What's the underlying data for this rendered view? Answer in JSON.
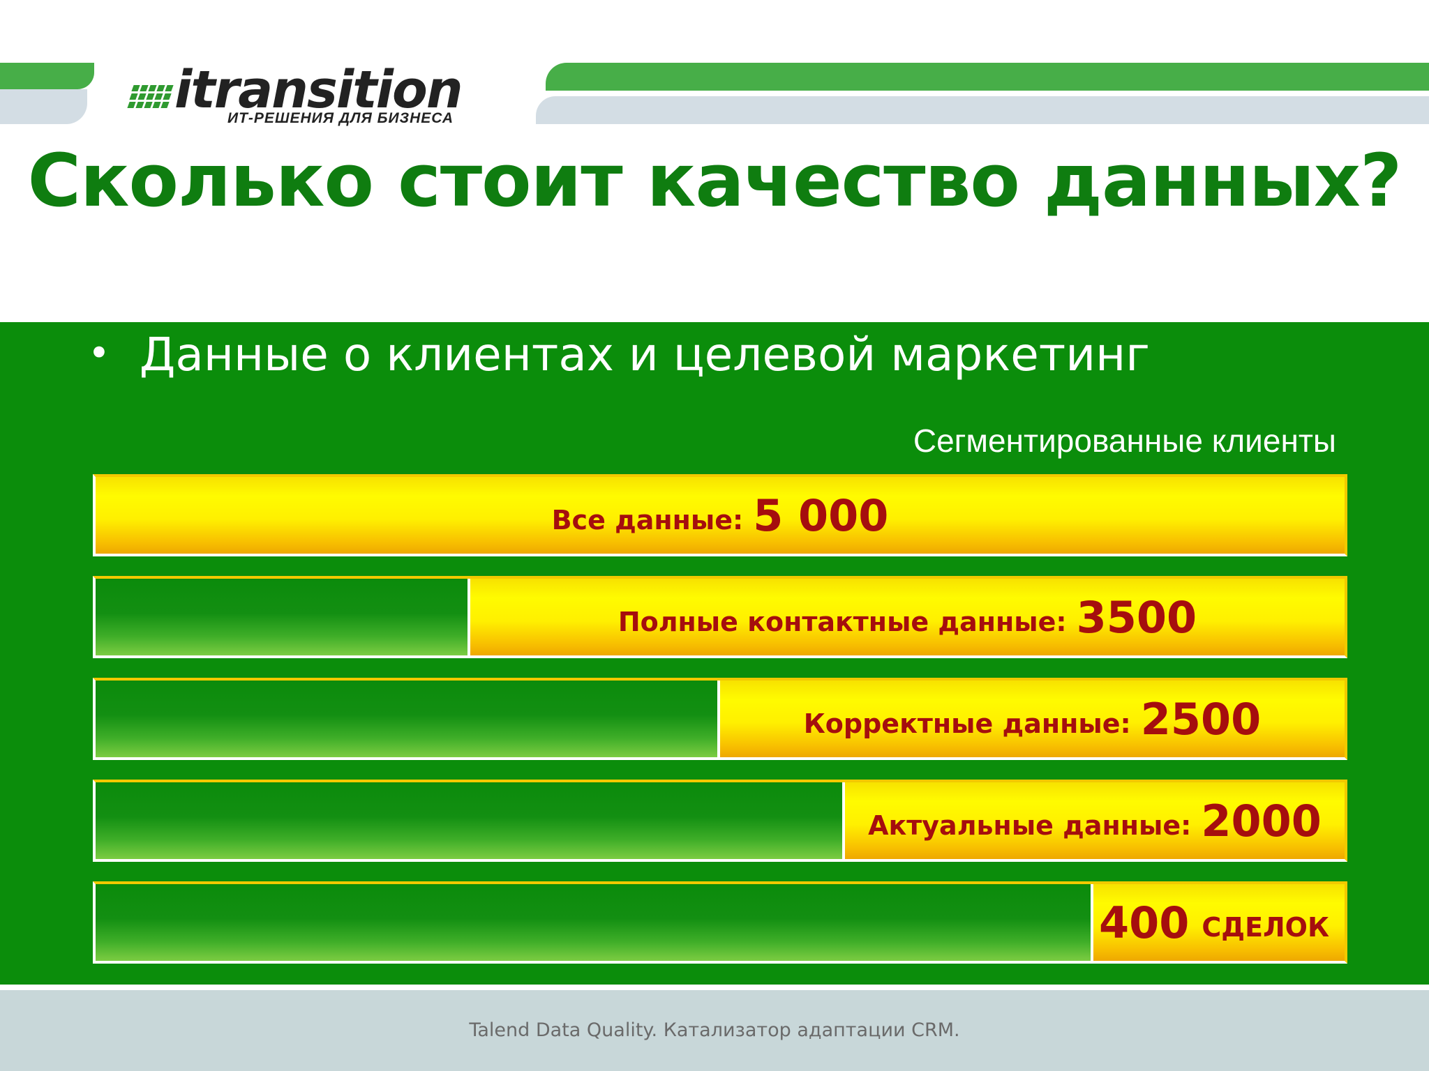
{
  "logo": {
    "word": "itransition",
    "tagline": "ИТ-РЕШЕНИЯ ДЛЯ БИЗНЕСА"
  },
  "title": "Сколько стоит качество данных?",
  "bullet": {
    "text": "Данные о клиентах и целевой маркетинг"
  },
  "chart_data": {
    "type": "bar",
    "title": "Сегментированные клиенты",
    "categories": [
      "Все данные:",
      "Полные контактные данные:",
      "Корректные данные:",
      "Актуальные данные:",
      "СДЕЛОК"
    ],
    "values": [
      5000,
      3500,
      2500,
      2000,
      400
    ],
    "value_labels": [
      "5 000",
      "3500",
      "2500",
      "2000",
      "400"
    ],
    "xlim": [
      0,
      5000
    ]
  },
  "colors": {
    "green": "#0b8d0b",
    "title_green": "#0f7d10",
    "yellow": "#fff200",
    "label_red": "#a50e0e"
  },
  "footer": {
    "text": "Talend Data Quality. Катализатор адаптации CRM."
  }
}
